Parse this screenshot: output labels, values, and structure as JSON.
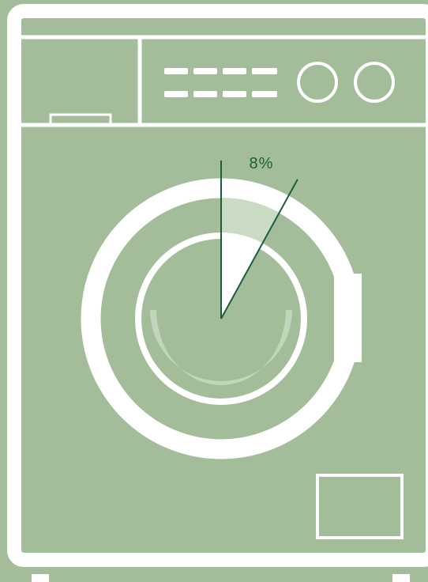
{
  "chart_data": {
    "type": "pie",
    "title": "",
    "slices": [
      {
        "label": "8%",
        "value": 8,
        "highlighted": true
      }
    ],
    "start_angle_deg": 0,
    "direction": "clockwise"
  },
  "colors": {
    "background": "#a3bd9b",
    "appliance_outline": "#ffffff",
    "leader_line": "#1b5e3b",
    "label_text": "#1b5e3b",
    "highlight_fill": "#ffffff",
    "ring_highlight": "#c9dcc3",
    "drum_shade": "#c3d8bd"
  },
  "icons": {
    "appliance": "washing-machine-icon"
  }
}
